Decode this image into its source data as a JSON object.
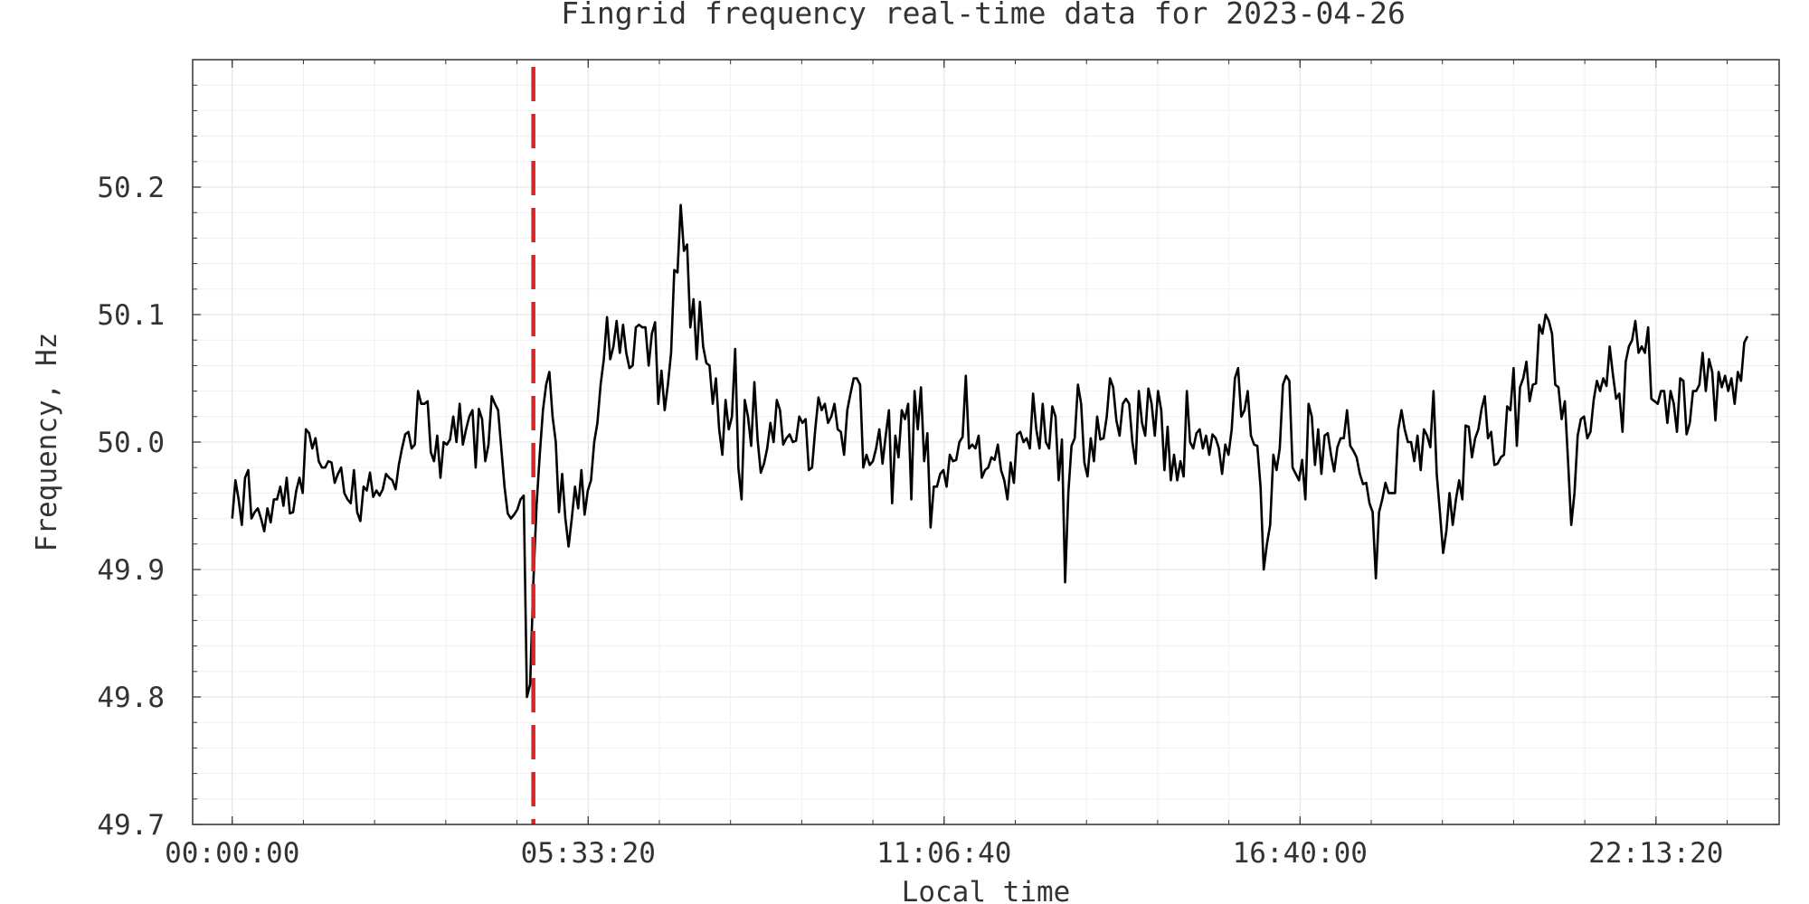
{
  "chart_data": {
    "type": "line",
    "title": "Fingrid frequency real-time data for 2023-04-26",
    "xlabel": "Local time",
    "ylabel": "Frequency, Hz",
    "xlim": [
      "-00:37:03",
      "24:08:41"
    ],
    "ylim": [
      49.7,
      50.3
    ],
    "x_ticks": [
      "00:00:00",
      "05:33:20",
      "11:06:40",
      "16:40:00",
      "22:13:20"
    ],
    "y_ticks": [
      "49.7",
      "49.8",
      "49.9",
      "50.0",
      "50.1",
      "50.2"
    ],
    "grid": true,
    "colors": {
      "series": "#000000",
      "marker_line": "#d62728",
      "grid": "#e6e6e6",
      "axes": "#333333"
    },
    "vertical_line": {
      "x": "04:42:00",
      "style": "dashed"
    },
    "series": [
      {
        "x_interval_seconds": 180,
        "x_start": "00:00:00",
        "values": [
          49.94,
          49.97,
          49.955,
          49.935,
          49.972,
          49.978,
          49.94,
          49.945,
          49.948,
          49.94,
          49.93,
          49.948,
          49.937,
          49.955,
          49.955,
          49.965,
          49.95,
          49.972,
          49.944,
          49.945,
          49.962,
          49.972,
          49.96,
          50.01,
          50.007,
          49.995,
          50.003,
          49.985,
          49.98,
          49.98,
          49.985,
          49.984,
          49.968,
          49.975,
          49.98,
          49.96,
          49.955,
          49.952,
          49.978,
          49.945,
          49.938,
          49.965,
          49.962,
          49.976,
          49.957,
          49.962,
          49.958,
          49.963,
          49.975,
          49.972,
          49.97,
          49.963,
          49.982,
          49.995,
          50.006,
          50.008,
          49.995,
          49.998,
          50.04,
          50.03,
          50.03,
          50.032,
          49.992,
          49.985,
          50.005,
          49.972,
          50.0,
          49.998,
          50.002,
          50.02,
          50.0,
          50.03,
          49.998,
          50.01,
          50.02,
          50.025,
          49.98,
          50.026,
          50.018,
          49.985,
          49.998,
          50.036,
          50.03,
          50.025,
          49.995,
          49.965,
          49.944,
          49.94,
          49.943,
          49.947,
          49.955,
          49.958,
          49.8,
          49.81,
          49.89,
          49.95,
          49.99,
          50.025,
          50.045,
          50.055,
          50.02,
          50.0,
          49.945,
          49.975,
          49.94,
          49.918,
          49.94,
          49.965,
          49.948,
          49.978,
          49.943,
          49.962,
          49.97,
          50.0,
          50.015,
          50.045,
          50.065,
          50.098,
          50.065,
          50.075,
          50.095,
          50.07,
          50.092,
          50.07,
          50.058,
          50.06,
          50.09,
          50.092,
          50.09,
          50.09,
          50.06,
          50.085,
          50.094,
          50.03,
          50.056,
          50.025,
          50.045,
          50.07,
          50.135,
          50.133,
          50.186,
          50.15,
          50.155,
          50.09,
          50.112,
          50.065,
          50.11,
          50.075,
          50.062,
          50.06,
          50.03,
          50.05,
          50.01,
          49.99,
          50.033,
          50.01,
          50.02,
          50.073,
          49.98,
          49.955,
          50.033,
          50.02,
          49.997,
          50.047,
          50.002,
          49.976,
          49.983,
          49.995,
          50.015,
          50.0,
          50.033,
          50.025,
          49.998,
          50.003,
          50.006,
          50.0,
          50.001,
          50.02,
          50.015,
          50.018,
          49.978,
          49.98,
          50.01,
          50.035,
          50.025,
          50.03,
          50.015,
          50.02,
          50.03,
          50.01,
          50.008,
          49.99,
          50.025,
          50.038,
          50.05,
          50.05,
          50.045,
          49.98,
          49.99,
          49.982,
          49.985,
          49.995,
          50.01,
          49.983,
          50.005,
          50.025,
          49.952,
          50.005,
          49.988,
          50.025,
          50.018,
          50.03,
          49.955,
          50.04,
          50.01,
          50.043,
          49.985,
          50.007,
          49.933,
          49.965,
          49.965,
          49.975,
          49.978,
          49.965,
          49.99,
          49.985,
          49.986,
          50.0,
          50.004,
          50.052,
          49.995,
          49.998,
          49.995,
          50.005,
          49.972,
          49.978,
          49.98,
          49.988,
          49.986,
          49.998,
          49.978,
          49.97,
          49.955,
          49.984,
          49.968,
          50.006,
          50.008,
          50.0,
          50.003,
          49.995,
          50.038,
          50.01,
          49.995,
          50.03,
          50.0,
          49.995,
          50.028,
          50.02,
          49.97,
          50.002,
          49.89,
          49.96,
          49.997,
          50.003,
          50.045,
          50.03,
          49.984,
          49.973,
          50.003,
          49.985,
          50.02,
          50.002,
          50.003,
          50.02,
          50.05,
          50.043,
          50.017,
          50.005,
          50.03,
          50.034,
          50.03,
          50.0,
          49.983,
          50.04,
          50.015,
          50.005,
          50.042,
          50.03,
          50.005,
          50.04,
          50.025,
          49.978,
          50.012,
          49.97,
          49.99,
          49.97,
          49.985,
          49.973,
          50.04,
          50.0,
          49.995,
          50.007,
          50.01,
          49.995,
          50.005,
          49.99,
          50.006,
          50.003,
          49.995,
          49.975,
          49.998,
          49.99,
          50.01,
          50.05,
          50.058,
          50.02,
          50.025,
          50.04,
          50.005,
          49.998,
          49.997,
          49.965,
          49.9,
          49.92,
          49.935,
          49.99,
          49.978,
          49.995,
          50.045,
          50.052,
          50.048,
          49.98,
          49.975,
          49.97,
          49.986,
          49.955,
          50.03,
          50.02,
          49.982,
          50.01,
          49.975,
          50.005,
          50.007,
          49.99,
          49.977,
          49.996,
          50.003,
          50.003,
          50.025,
          49.997,
          49.993,
          49.988,
          49.975,
          49.967,
          49.968,
          49.952,
          49.945,
          49.893,
          49.945,
          49.955,
          49.968,
          49.96,
          49.96,
          49.96,
          50.01,
          50.025,
          50.01,
          50.0,
          50.0,
          49.985,
          50.005,
          49.978,
          50.01,
          50.005,
          49.996,
          50.04,
          49.975,
          49.945,
          49.913,
          49.93,
          49.96,
          49.935,
          49.955,
          49.97,
          49.955,
          50.013,
          50.012,
          49.988,
          50.003,
          50.01,
          50.026,
          50.036,
          50.003,
          50.008,
          49.982,
          49.983,
          49.988,
          49.99,
          50.028,
          50.025,
          50.058,
          49.997,
          50.043,
          50.05,
          50.063,
          50.032,
          50.045,
          50.046,
          50.092,
          50.085,
          50.1,
          50.095,
          50.085,
          50.045,
          50.043,
          50.018,
          50.032,
          49.985,
          49.935,
          49.96,
          50.005,
          50.018,
          50.02,
          50.003,
          50.008,
          50.033,
          50.048,
          50.04,
          50.05,
          50.044,
          50.075,
          50.053,
          50.034,
          50.038,
          50.008,
          50.063,
          50.075,
          50.08,
          50.095,
          50.07,
          50.075,
          50.07,
          50.09,
          50.034,
          50.032,
          50.03,
          50.04,
          50.04,
          50.015,
          50.04,
          50.03,
          50.008,
          50.05,
          50.048,
          50.006,
          50.015,
          50.04,
          50.04,
          50.045,
          50.07,
          50.04,
          50.065,
          50.055,
          50.017,
          50.055,
          50.043,
          50.052,
          50.04,
          50.05,
          50.03,
          50.055,
          50.048,
          50.078,
          50.083
        ]
      }
    ]
  }
}
